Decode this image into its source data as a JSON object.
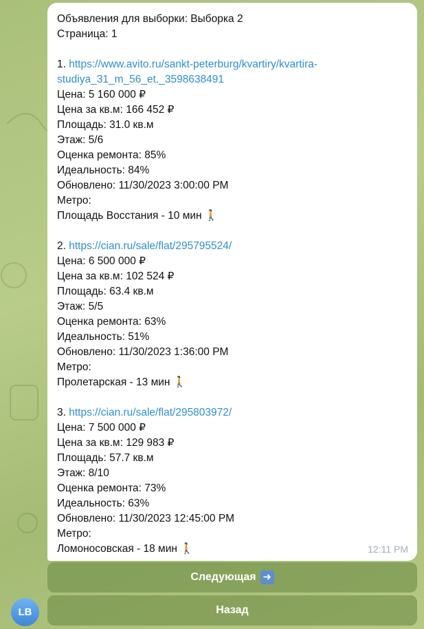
{
  "message": {
    "header": "Объявления для выборки: Выборка 2",
    "page": "Страница: 1",
    "time": "12:11 PM",
    "listings": [
      {
        "num": "1.",
        "url": "https://www.avito.ru/sankt-peterburg/kvartiry/kvartira-studiya_31_m_56_et._3598638491",
        "url_line1": "https://www.avito.ru/sankt-peterburg/kvartiry/kvartira-",
        "url_line2": "studiya_31_m_56_et._3598638491",
        "price": "Цена: 5 160 000 ₽",
        "price_sqm": "Цена за кв.м: 166 452 ₽",
        "area": "Площадь: 31.0 кв.м",
        "floor": "Этаж: 5/6",
        "repair": "Оценка ремонта: 85%",
        "ideal": "Идеальность: 84%",
        "updated": "Обновлено: 11/30/2023 3:00:00 PM",
        "metro_label": "Метро:",
        "metro": "Площадь Восстания - 10 мин 🚶"
      },
      {
        "num": "2.",
        "url": "https://cian.ru/sale/flat/295795524/",
        "price": "Цена: 6 500 000 ₽",
        "price_sqm": "Цена за кв.м: 102 524 ₽",
        "area": "Площадь: 63.4 кв.м",
        "floor": "Этаж: 5/5",
        "repair": "Оценка ремонта: 63%",
        "ideal": "Идеальность: 51%",
        "updated": "Обновлено: 11/30/2023 1:36:00 PM",
        "metro_label": "Метро:",
        "metro": "Пролетарская - 13 мин 🚶"
      },
      {
        "num": "3.",
        "url": "https://cian.ru/sale/flat/295803972/",
        "price": "Цена: 7 500 000 ₽",
        "price_sqm": "Цена за кв.м: 129 983 ₽",
        "area": "Площадь: 57.7 кв.м",
        "floor": "Этаж: 8/10",
        "repair": "Оценка ремонта: 73%",
        "ideal": "Идеальность: 63%",
        "updated": "Обновлено: 11/30/2023 12:45:00 PM",
        "metro_label": "Метро:",
        "metro": "Ломоносовская - 18 мин 🚶"
      }
    ]
  },
  "keyboard": {
    "next": "Следующая",
    "next_icon": "arrow-right-emoji",
    "back": "Назад"
  },
  "avatar": {
    "initials": "LB"
  },
  "colors": {
    "link": "#2f8fcf",
    "background": "#b0c47f",
    "button": "#88a566"
  }
}
